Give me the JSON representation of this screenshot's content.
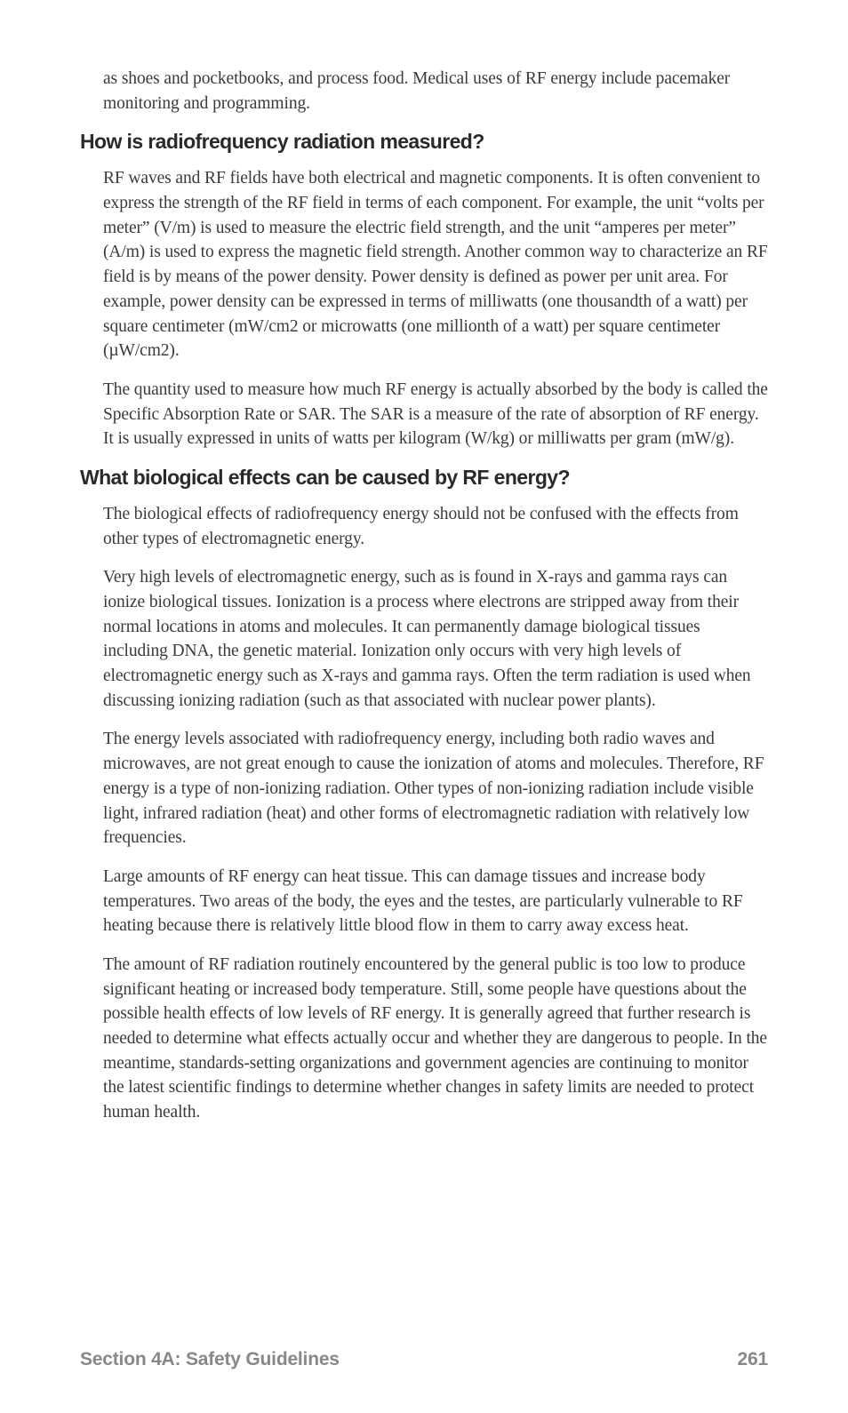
{
  "intro_para": "as shoes and pocketbooks, and process food. Medical uses of RF energy include pacemaker monitoring and programming.",
  "heading1": "How is radiofrequency radiation measured?",
  "section1": {
    "p1": "RF waves and RF fields have both electrical and magnetic components. It is often convenient to express the strength of the RF field in terms of each component. For example, the unit “volts per meter” (V/m) is used to measure the electric field strength, and the unit “amperes per meter” (A/m) is used to express the magnetic field strength. Another common way to characterize an RF field is by means of the power density. Power density is defined as power per unit area. For example, power density can be expressed in terms of milliwatts (one thousandth of a watt) per square centimeter (mW/cm2 or microwatts (one millionth of a watt) per square centimeter (µW/cm2).",
    "p2": "The quantity used to measure how much RF energy is actually absorbed by the body is called the Specific Absorption Rate or SAR. The SAR is a measure of the rate of absorption of RF energy. It is usually expressed in units of watts per kilogram (W/kg) or milliwatts per gram (mW/g)."
  },
  "heading2": "What biological effects can be caused by RF energy?",
  "section2": {
    "p1": "The biological effects of radiofrequency energy should not be confused with the effects from other types of electromagnetic energy.",
    "p2": "Very high levels of electromagnetic energy, such as is found in X-rays and gamma rays can ionize biological tissues. Ionization is a process where electrons are stripped away from their normal locations in atoms and molecules. It can permanently damage biological tissues including DNA, the genetic material. Ionization only occurs with very high levels of electromagnetic energy such as X-rays and gamma rays. Often the term radiation is used when discussing ionizing radiation (such as that associated with nuclear power plants).",
    "p3": "The energy levels associated with radiofrequency energy, including both radio waves and microwaves, are not great enough to cause the ionization of atoms and molecules. Therefore, RF energy is a type of non-ionizing radiation. Other types of non-ionizing radiation include visible light, infrared radiation (heat) and other forms of electromagnetic radiation with relatively low frequencies.",
    "p4": "Large amounts of RF energy can heat tissue. This can damage tissues and increase body temperatures. Two areas of the body, the eyes and the testes, are particularly vulnerable to RF heating because there is relatively little blood flow in them to carry away excess heat.",
    "p5": "The amount of RF radiation routinely encountered by the general public is too low to produce significant heating or increased body temperature. Still, some people have questions about the possible health effects of low levels of RF energy. It is generally agreed that further research is needed to determine what effects actually occur and whether they are dangerous to people. In the meantime, standards-setting organizations and government agencies are continuing to monitor the latest scientific findings to determine whether changes in safety limits are needed to protect human health."
  },
  "footer": {
    "section": "Section 4A: Safety Guidelines",
    "page": "261"
  }
}
